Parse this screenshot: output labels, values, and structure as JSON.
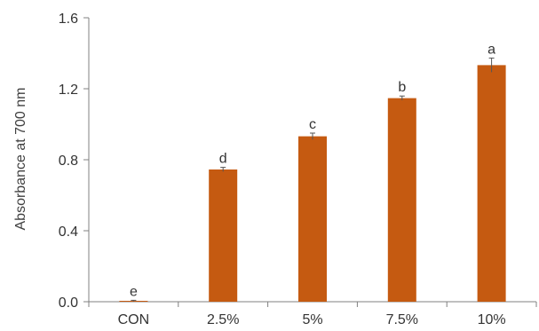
{
  "chart_data": {
    "type": "bar",
    "title": "",
    "xlabel": "",
    "ylabel": "Absorbance at 700 nm",
    "categories": [
      "CON",
      "2.5%",
      "5%",
      "7.5%",
      "10%"
    ],
    "values": [
      0.005,
      0.745,
      0.932,
      1.147,
      1.333
    ],
    "errors": [
      0.003,
      0.012,
      0.018,
      0.012,
      0.04
    ],
    "significance": [
      "e",
      "d",
      "c",
      "b",
      "a"
    ],
    "ylim": [
      0,
      1.6
    ],
    "yticks": [
      0.0,
      0.4,
      0.8,
      1.2,
      1.6
    ],
    "ytick_labels": [
      "0.0",
      "0.4",
      "0.8",
      "1.2",
      "1.6"
    ],
    "grid": false,
    "legend": "none",
    "bar_color": "#C55A11",
    "axis_color": "#808080"
  }
}
